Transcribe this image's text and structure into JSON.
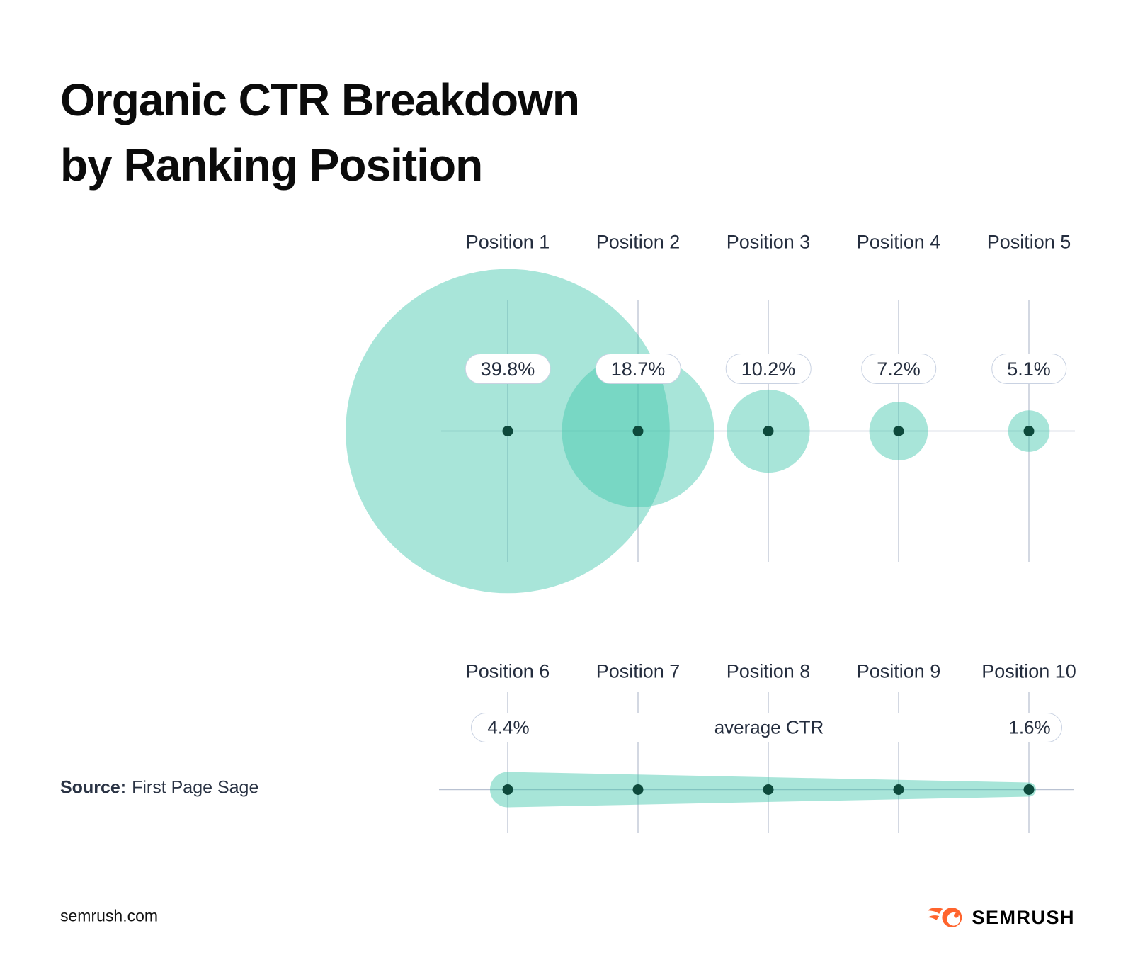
{
  "title": {
    "line1": "Organic CTR Breakdown",
    "line2": "by Ranking Position"
  },
  "source": {
    "label": "Source:",
    "value": "First Page Sage"
  },
  "footer": {
    "website": "semrush.com",
    "brand": "SEMRUSH"
  },
  "chart_data": {
    "type": "bubble",
    "title": "Organic CTR Breakdown by Ranking Position",
    "unit": "%",
    "legend": false,
    "grid": true,
    "rows": [
      {
        "categories": [
          "Position 1",
          "Position 2",
          "Position 3",
          "Position 4",
          "Position 5"
        ],
        "values": [
          39.8,
          18.7,
          10.2,
          7.2,
          5.1
        ],
        "labels": [
          "39.8%",
          "18.7%",
          "10.2%",
          "7.2%",
          "5.1%"
        ]
      },
      {
        "categories": [
          "Position 6",
          "Position 7",
          "Position 8",
          "Position 9",
          "Position 10"
        ],
        "values": [
          4.4,
          null,
          null,
          null,
          1.6
        ],
        "start_label": "4.4%",
        "center_label": "average CTR",
        "end_label": "1.6%"
      }
    ],
    "colors": {
      "bubble": "#3ec6aa",
      "dot": "#0d4a3c",
      "grid_vertical": "#c8cedb",
      "grid_horizontal": "#b9c2d2",
      "pill_border": "#c9d2e2",
      "label_text": "#242d3e",
      "brand_orange": "#ff642d"
    }
  }
}
